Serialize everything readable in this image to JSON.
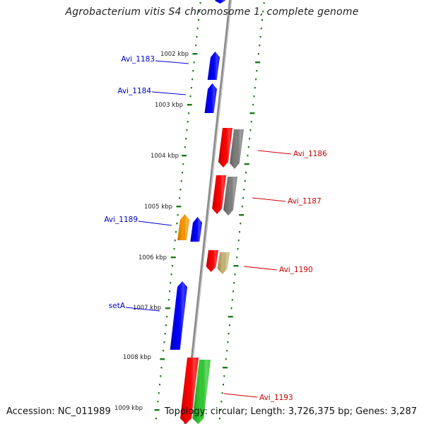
{
  "title": "Agrobacterium vitis S4 chromosome 1, complete genome",
  "footer": {
    "accession": "Accession: NC_011989",
    "topology": "Topology: circular; Length: 3,726,375 bp; Genes: 3,287"
  },
  "colors": {
    "backbone": "#8c8c8c",
    "tick": "#1a7a1a",
    "forward_label": "#0000cc",
    "reverse_label": "#cc0000"
  },
  "kbp_labels": [
    "1002 kbp",
    "1003 kbp",
    "1004 kbp",
    "1005 kbp",
    "1006 kbp",
    "1007 kbp",
    "1008 kbp",
    "1009 kbp"
  ],
  "genes": [
    {
      "strand": "forward",
      "color": "#0000ff"
    },
    {
      "strand": "forward",
      "color": "#0000ff"
    },
    {
      "strand": "reverse",
      "color": "#ff0000"
    },
    {
      "strand": "reverse",
      "color": "#808080"
    },
    {
      "strand": "reverse",
      "color": "#ff0000"
    },
    {
      "strand": "reverse",
      "color": "#808080"
    },
    {
      "strand": "forward",
      "color": "#ff9900"
    },
    {
      "strand": "forward",
      "color": "#0000ff"
    },
    {
      "strand": "reverse",
      "color": "#ff0000"
    },
    {
      "strand": "reverse",
      "color": "#c8b878"
    },
    {
      "strand": "forward",
      "color": "#0000ff"
    },
    {
      "strand": "reverse",
      "color": "#ff0000"
    },
    {
      "strand": "reverse",
      "color": "#33cc33"
    },
    {
      "strand": "forward",
      "color": "#0000ff"
    }
  ],
  "gene_labels": [
    {
      "text": "Avi_1183",
      "strand": "forward"
    },
    {
      "text": "Avi_1184",
      "strand": "forward"
    },
    {
      "text": "Avi_1186",
      "strand": "reverse"
    },
    {
      "text": "Avi_1187",
      "strand": "reverse"
    },
    {
      "text": "Avi_1189",
      "strand": "forward"
    },
    {
      "text": "Avi_1190",
      "strand": "reverse"
    },
    {
      "text": "setA",
      "strand": "forward"
    },
    {
      "text": "Avi_1193",
      "strand": "reverse"
    }
  ]
}
